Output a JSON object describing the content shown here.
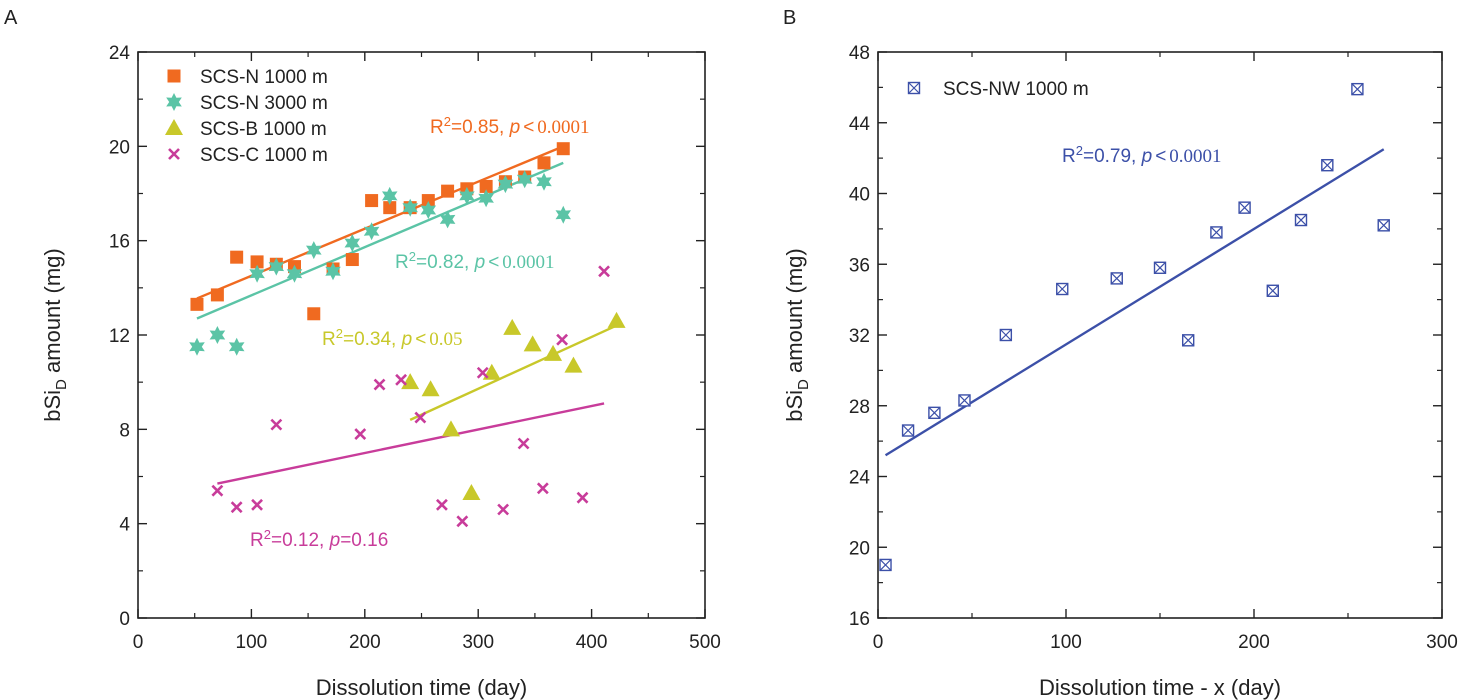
{
  "chart_data": [
    {
      "panel": "A",
      "type": "scatter",
      "xlabel": "Dissolution time (day)",
      "ylabel": {
        "pre": "bSi",
        "sub": "D",
        "post": " amount (mg)"
      },
      "xlim": [
        0,
        500
      ],
      "ylim": [
        0,
        24
      ],
      "xticks": [
        0,
        100,
        200,
        300,
        400,
        500
      ],
      "yticks": [
        0,
        4,
        8,
        12,
        16,
        20,
        24
      ],
      "legend_position": "top-left",
      "series": [
        {
          "name": "SCS-N 1000 m",
          "marker": "square",
          "color": "#f06a20",
          "x": [
            52,
            70,
            87,
            105,
            122,
            138,
            155,
            172,
            189,
            206,
            222,
            240,
            256,
            273,
            290,
            307,
            324,
            341,
            358,
            375
          ],
          "y": [
            13.3,
            13.7,
            15.3,
            15.1,
            15.0,
            14.9,
            12.9,
            14.8,
            15.2,
            17.7,
            17.4,
            17.4,
            17.7,
            18.1,
            18.2,
            18.3,
            18.5,
            18.7,
            19.3,
            19.9
          ],
          "fit": {
            "x": [
              52,
              375
            ],
            "y": [
              13.55,
              20.0
            ]
          },
          "annotation": {
            "r2": "0.85",
            "sep": "<",
            "p": "0.0001"
          }
        },
        {
          "name": "SCS-N 3000 m",
          "marker": "star",
          "color": "#5bc4a6",
          "x": [
            52,
            70,
            87,
            105,
            122,
            138,
            155,
            172,
            189,
            206,
            222,
            240,
            256,
            273,
            290,
            307,
            324,
            341,
            358,
            375
          ],
          "y": [
            11.5,
            12.0,
            11.5,
            14.6,
            14.9,
            14.6,
            15.6,
            14.7,
            15.9,
            16.4,
            17.9,
            17.4,
            17.3,
            16.9,
            17.9,
            17.8,
            18.4,
            18.6,
            18.5,
            17.1
          ],
          "fit": {
            "x": [
              52,
              375
            ],
            "y": [
              12.7,
              19.3
            ]
          },
          "annotation": {
            "r2": "0.82",
            "sep": "<",
            "p": "0.0001"
          }
        },
        {
          "name": "SCS-B 1000 m",
          "marker": "triangle",
          "color": "#c8c82a",
          "x": [
            240,
            258,
            276,
            294,
            312,
            330,
            348,
            366,
            384,
            422
          ],
          "y": [
            10.0,
            9.7,
            8.0,
            5.3,
            10.4,
            12.3,
            11.6,
            11.2,
            10.7,
            12.6
          ],
          "fit": {
            "x": [
              240,
              422
            ],
            "y": [
              8.4,
              12.4
            ]
          },
          "annotation": {
            "r2": "0.34",
            "sep": "<",
            "p": "0.05"
          }
        },
        {
          "name": "SCS-C 1000 m",
          "marker": "x",
          "color": "#c83c9a",
          "x": [
            70,
            87,
            105,
            122,
            196,
            213,
            232,
            249,
            268,
            286,
            304,
            322,
            340,
            357,
            374,
            392,
            411
          ],
          "y": [
            5.4,
            4.7,
            4.8,
            8.2,
            7.8,
            9.9,
            10.1,
            8.5,
            4.8,
            4.1,
            10.4,
            4.6,
            7.4,
            5.5,
            11.8,
            5.1,
            14.7
          ],
          "fit": {
            "x": [
              70,
              411
            ],
            "y": [
              5.7,
              9.1
            ]
          },
          "annotation": {
            "r2": "0.12",
            "sep": "=",
            "p": "0.16"
          }
        }
      ]
    },
    {
      "panel": "B",
      "type": "scatter",
      "xlabel": "Dissolution time - x (day)",
      "ylabel": {
        "pre": "bSi",
        "sub": "D",
        "post": " amount (mg)"
      },
      "xlim": [
        0,
        300
      ],
      "ylim": [
        16,
        48
      ],
      "xticks": [
        0,
        100,
        200,
        300
      ],
      "yticks": [
        16,
        20,
        24,
        28,
        32,
        36,
        40,
        44,
        48
      ],
      "legend_position": "top-left",
      "series": [
        {
          "name": "SCS-NW 1000 m",
          "marker": "boxx",
          "color": "#3c50a8",
          "x": [
            4,
            16,
            30,
            46,
            68,
            98,
            127,
            150,
            165,
            180,
            195,
            210,
            225,
            239,
            255,
            269
          ],
          "y": [
            19.0,
            26.6,
            27.6,
            28.3,
            32.0,
            34.6,
            35.2,
            35.8,
            31.7,
            37.8,
            39.2,
            34.5,
            38.5,
            41.6,
            45.9,
            38.2
          ],
          "fit": {
            "x": [
              4,
              269
            ],
            "y": [
              25.2,
              42.5
            ]
          },
          "annotation": {
            "r2": "0.79",
            "sep": "<",
            "p": "0.0001"
          }
        }
      ]
    }
  ],
  "panels": {
    "a_tag": "A",
    "b_tag": "B"
  },
  "annotation_text": {
    "r2_prefix": "R",
    "r2_sup": "2",
    "r2_eq": "=",
    "comma": ", ",
    "p_label": "p"
  }
}
